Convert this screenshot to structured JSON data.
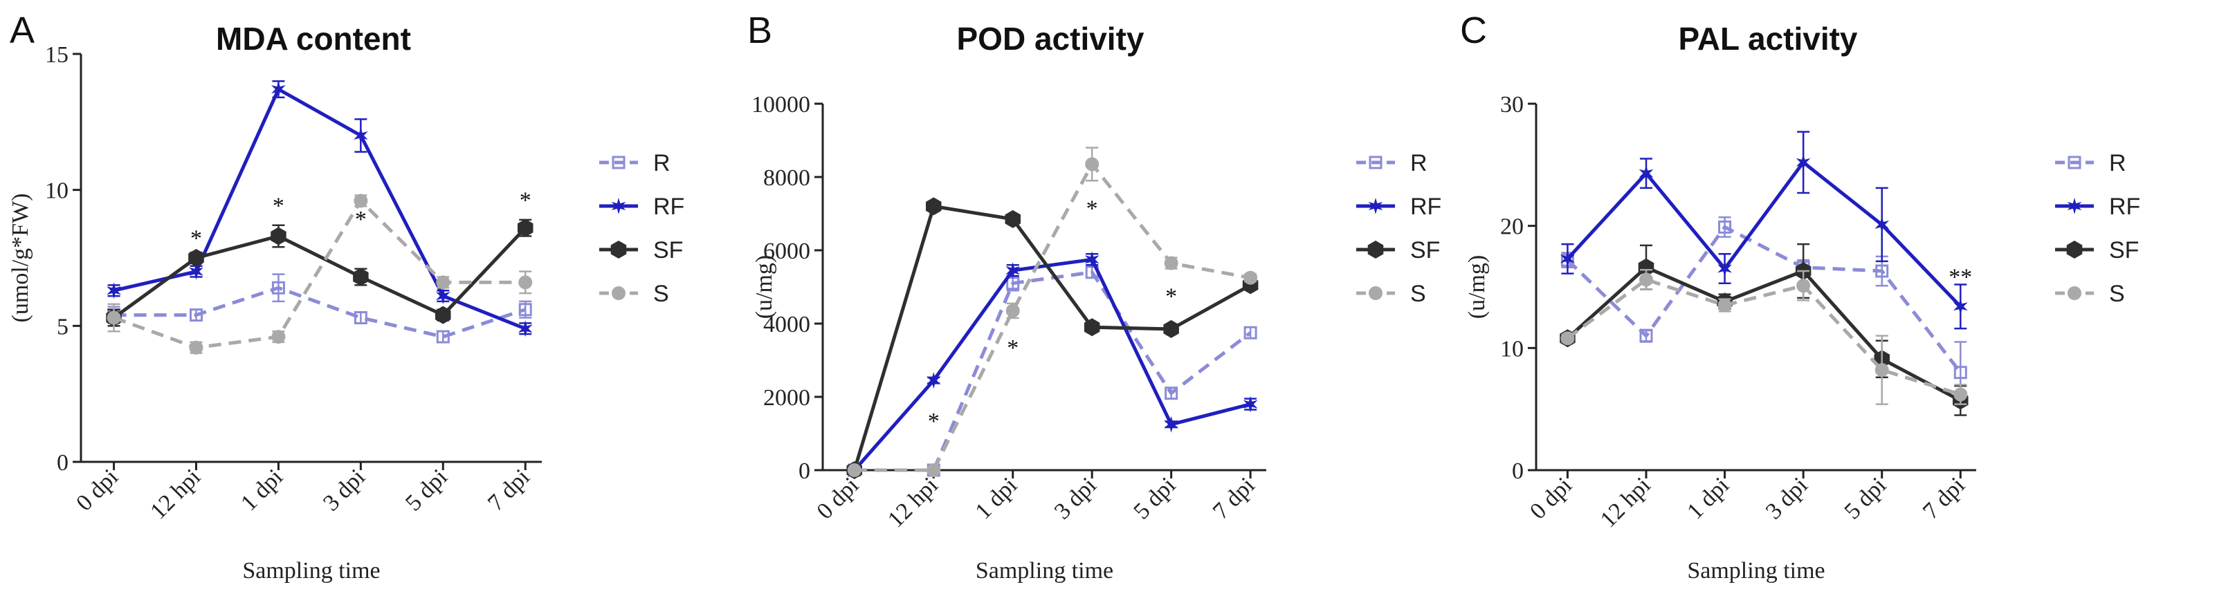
{
  "figure_panels": [
    "A",
    "B",
    "C"
  ],
  "colors": {
    "R": "#8b8bd8",
    "RF": "#1f1fbf",
    "SF": "#2f2f2f",
    "S": "#a9a9a9"
  },
  "chart_data": [
    {
      "panel": "A",
      "type": "line",
      "title": "MDA content",
      "xlabel": "Sampling time",
      "ylabel": "(umol/g*FW)",
      "ylim": [
        0,
        15
      ],
      "yticks": [
        0,
        5,
        10,
        15
      ],
      "categories": [
        "0 dpi",
        "12 hpi",
        "1 dpi",
        "3 dpi",
        "5 dpi",
        "7 dpi"
      ],
      "series": [
        {
          "name": "R",
          "style": "dashed",
          "marker": "square",
          "values": [
            5.4,
            5.4,
            6.4,
            5.3,
            4.6,
            5.6
          ],
          "errors": [
            0.3,
            0.2,
            0.5,
            0.2,
            0.2,
            0.3
          ]
        },
        {
          "name": "RF",
          "style": "solid",
          "marker": "star",
          "values": [
            6.3,
            7.0,
            13.7,
            12.0,
            6.1,
            4.9
          ],
          "errors": [
            0.2,
            0.2,
            0.3,
            0.6,
            0.2,
            0.2
          ]
        },
        {
          "name": "SF",
          "style": "solid",
          "marker": "hexagon",
          "values": [
            5.3,
            7.5,
            8.3,
            6.8,
            5.4,
            8.6
          ],
          "errors": [
            0.3,
            0.2,
            0.4,
            0.3,
            0.2,
            0.3
          ]
        },
        {
          "name": "S",
          "style": "dashed",
          "marker": "circle",
          "values": [
            5.3,
            4.2,
            4.6,
            9.6,
            6.6,
            6.6
          ],
          "errors": [
            0.5,
            0.2,
            0.2,
            0.2,
            0.2,
            0.4
          ]
        }
      ],
      "annotations": [
        {
          "text": "*",
          "x": "12 hpi",
          "y": 8.3
        },
        {
          "text": "*",
          "x": "1 dpi",
          "y": 9.5
        },
        {
          "text": "*",
          "x": "3 dpi",
          "y": 9.0
        },
        {
          "text": "*",
          "x": "7 dpi",
          "y": 9.7
        }
      ]
    },
    {
      "panel": "B",
      "type": "line",
      "title": "POD activity",
      "xlabel": "Sampling time",
      "ylabel": "(u/mg)",
      "ylim": [
        0,
        10000
      ],
      "yticks": [
        0,
        2000,
        4000,
        6000,
        8000,
        10000
      ],
      "categories": [
        "0 dpi",
        "12 hpi",
        "1 dpi",
        "3 dpi",
        "5 dpi",
        "7 dpi"
      ],
      "series": [
        {
          "name": "R",
          "style": "dashed",
          "marker": "square",
          "values": [
            0,
            0,
            5100,
            5400,
            2100,
            3750
          ],
          "errors": [
            20,
            20,
            200,
            150,
            150,
            150
          ]
        },
        {
          "name": "RF",
          "style": "solid",
          "marker": "star",
          "values": [
            0,
            2450,
            5450,
            5750,
            1250,
            1800
          ],
          "errors": [
            20,
            80,
            150,
            150,
            80,
            150
          ]
        },
        {
          "name": "SF",
          "style": "solid",
          "marker": "hexagon",
          "values": [
            0,
            7200,
            6850,
            3900,
            3850,
            5050
          ],
          "errors": [
            20,
            100,
            100,
            100,
            100,
            100
          ]
        },
        {
          "name": "S",
          "style": "dashed",
          "marker": "circle",
          "values": [
            0,
            0,
            4350,
            8350,
            5650,
            5250
          ],
          "errors": [
            20,
            20,
            200,
            450,
            150,
            100
          ]
        }
      ],
      "annotations": [
        {
          "text": "*",
          "x": "12 hpi",
          "y": 1400
        },
        {
          "text": "*",
          "x": "1 dpi",
          "y": 3400
        },
        {
          "text": "*",
          "x": "3 dpi",
          "y": 7200
        },
        {
          "text": "*",
          "x": "5 dpi",
          "y": 4800
        }
      ]
    },
    {
      "panel": "C",
      "type": "line",
      "title": "PAL activity",
      "xlabel": "Sampling time",
      "ylabel": "(u/mg)",
      "ylim": [
        0,
        30
      ],
      "yticks": [
        0,
        10,
        20,
        30
      ],
      "categories": [
        "0 dpi",
        "12 hpi",
        "1 dpi",
        "3 dpi",
        "5 dpi",
        "7 dpi"
      ],
      "series": [
        {
          "name": "R",
          "style": "dashed",
          "marker": "square",
          "values": [
            17.2,
            11.0,
            19.9,
            16.6,
            16.3,
            8.0
          ],
          "errors": [
            0.6,
            0.5,
            0.8,
            0.6,
            1.2,
            2.5
          ]
        },
        {
          "name": "RF",
          "style": "solid",
          "marker": "star",
          "values": [
            17.3,
            24.3,
            16.5,
            25.2,
            20.1,
            13.4
          ],
          "errors": [
            1.2,
            1.2,
            1.2,
            2.5,
            3.0,
            1.8
          ]
        },
        {
          "name": "SF",
          "style": "solid",
          "marker": "hexagon",
          "values": [
            10.8,
            16.6,
            13.8,
            16.3,
            9.1,
            5.7
          ],
          "errors": [
            0.3,
            1.8,
            0.6,
            2.2,
            1.5,
            1.2
          ]
        },
        {
          "name": "S",
          "style": "dashed",
          "marker": "circle",
          "values": [
            10.8,
            15.6,
            13.5,
            15.1,
            8.2,
            6.2
          ],
          "errors": [
            0.3,
            0.8,
            0.5,
            1.2,
            2.8,
            0.8
          ]
        }
      ],
      "annotations": [
        {
          "text": "**",
          "x": "7 dpi",
          "y": 16.0
        }
      ]
    }
  ]
}
